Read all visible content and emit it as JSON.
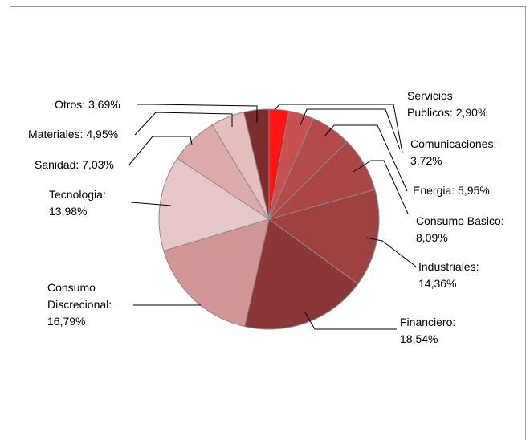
{
  "chart_data": {
    "type": "pie",
    "title": "",
    "slices": [
      {
        "label": "Servicios Publicos",
        "value": 2.9,
        "display": [
          "Servicios",
          "Publicos: 2,90%"
        ],
        "color": "#ff1414"
      },
      {
        "label": "Comunicaciones",
        "value": 3.72,
        "display": [
          "Comunicaciones:",
          "3,72%"
        ],
        "color": "#c85050"
      },
      {
        "label": "Energia",
        "value": 5.95,
        "display": [
          "Energia: 5,95%"
        ],
        "color": "#b44b4b"
      },
      {
        "label": "Consumo Basico",
        "value": 8.09,
        "display": [
          "Consumo Basico:",
          "8,09%"
        ],
        "color": "#aa4646"
      },
      {
        "label": "Industriales",
        "value": 14.36,
        "display": [
          "Industriales:",
          "14,36%"
        ],
        "color": "#a04141"
      },
      {
        "label": "Financiero",
        "value": 18.54,
        "display": [
          "Financiero:",
          "18,54%"
        ],
        "color": "#8c3737"
      },
      {
        "label": "Consumo Discrecional",
        "value": 16.79,
        "display": [
          "Consumo",
          "Discrecional:",
          "16,79%"
        ],
        "color": "#d29696"
      },
      {
        "label": "Tecnologia",
        "value": 13.98,
        "display": [
          "Tecnologia:",
          "13,98%"
        ],
        "color": "#e6c8c8"
      },
      {
        "label": "Sanidad",
        "value": 7.03,
        "display": [
          "Sanidad: 7,03%"
        ],
        "color": "#dcaaaa"
      },
      {
        "label": "Materiales",
        "value": 4.95,
        "display": [
          "Materiales: 4,95%"
        ],
        "color": "#e6bebe"
      },
      {
        "label": "Otros",
        "value": 3.69,
        "display": [
          "Otros: 3,69%"
        ],
        "color": "#7d2d2d"
      }
    ],
    "start_angle_deg": 0,
    "direction": "clockwise",
    "legend": "none",
    "labels": "outside-with-leader-lines"
  }
}
